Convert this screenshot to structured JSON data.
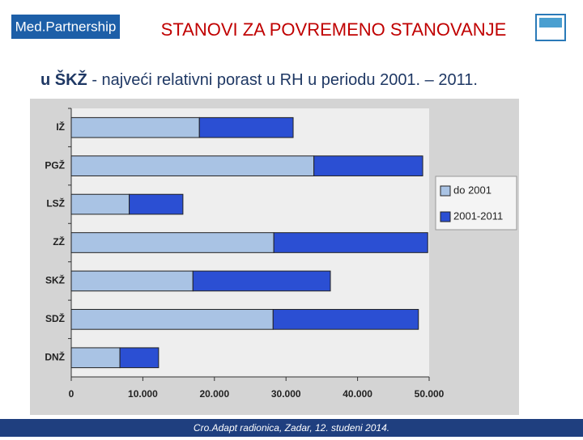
{
  "header": {
    "logo": "Med.Partnership",
    "title": "STANOVI ZA POVREMENO STANOVANJE",
    "subtitle_lead": "u ŠKŽ",
    "subtitle_rest": "- najveći relativni porast u RH u periodu 2001. – 2011."
  },
  "chart_data": {
    "type": "stacked-barh",
    "categories": [
      "IŽ",
      "PGŽ",
      "LSŽ",
      "ZŽ",
      "SKŽ",
      "SDŽ",
      "DNŽ"
    ],
    "series": [
      {
        "name": "do 2001",
        "color": "#a9c3e4",
        "values": [
          17900,
          33900,
          8100,
          28300,
          17000,
          28200,
          6800
        ]
      },
      {
        "name": "2001-2011",
        "color": "#2b4fd3",
        "values": [
          13100,
          15200,
          7500,
          21500,
          19200,
          20300,
          5400
        ]
      }
    ],
    "xlim": [
      0,
      50000
    ],
    "xticks": [
      0,
      {
        "value": 10000,
        "label": "10.000"
      },
      {
        "value": 20000,
        "label": "20.000"
      },
      {
        "value": 30000,
        "label": "30.000"
      },
      {
        "value": 40000,
        "label": "40.000"
      },
      {
        "value": 50000,
        "label": "50.000"
      }
    ],
    "legend": "right"
  },
  "footer": {
    "text": "Cro.Adapt radionica, Zadar, 12. studeni 2014."
  }
}
